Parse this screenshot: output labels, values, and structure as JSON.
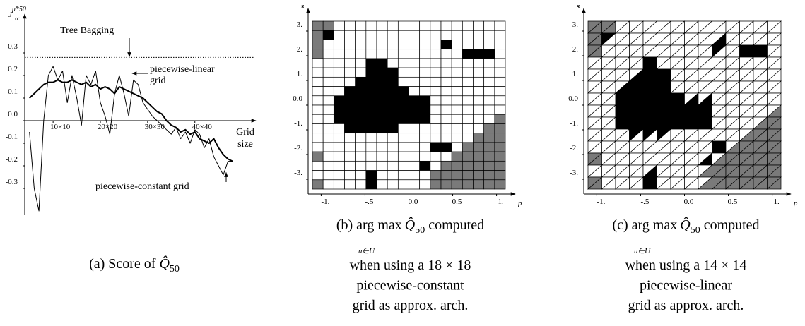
{
  "chart_data": [
    {
      "type": "line",
      "ylabel": {
        "base": "J",
        "sub": "∞",
        "sup": "μ̂*50"
      },
      "xlabel": [
        "Grid",
        "size"
      ],
      "x": [
        5,
        6,
        7,
        8,
        9,
        10,
        11,
        12,
        13,
        14,
        15,
        16,
        17,
        18,
        19,
        20,
        21,
        22,
        23,
        24,
        25,
        26,
        27,
        28,
        29,
        30,
        31,
        32,
        33,
        34,
        35,
        36,
        37,
        38,
        39,
        40,
        41,
        42,
        43,
        44,
        45,
        46,
        47,
        48
      ],
      "series": [
        {
          "name": "piecewise-linear grid",
          "color": "#000000",
          "width": 2,
          "values": [
            0.1,
            0.12,
            0.14,
            0.16,
            0.17,
            0.17,
            0.18,
            0.17,
            0.17,
            0.18,
            0.17,
            0.16,
            0.17,
            0.15,
            0.16,
            0.14,
            0.15,
            0.14,
            0.12,
            0.15,
            0.14,
            0.13,
            0.12,
            0.11,
            0.1,
            0.08,
            0.06,
            0.04,
            0.03,
            0.0,
            -0.02,
            -0.03,
            -0.05,
            -0.04,
            -0.06,
            -0.05,
            -0.08,
            -0.09,
            -0.1,
            -0.08,
            -0.12,
            -0.15,
            -0.17,
            -0.18
          ]
        },
        {
          "name": "piecewise-constant grid",
          "color": "#000000",
          "width": 1,
          "values": [
            -0.05,
            -0.3,
            -0.4,
            0.0,
            0.2,
            0.24,
            0.18,
            0.22,
            0.08,
            0.2,
            0.1,
            -0.02,
            0.2,
            0.16,
            0.22,
            0.08,
            0.02,
            -0.06,
            0.12,
            0.2,
            0.12,
            0.02,
            0.18,
            0.16,
            0.08,
            0.05,
            0.02,
            0.0,
            -0.02,
            -0.04,
            -0.06,
            -0.03,
            -0.08,
            -0.05,
            -0.1,
            -0.04,
            -0.06,
            -0.12,
            -0.08,
            -0.16,
            -0.2,
            -0.24,
            -0.18,
            -0.18
          ]
        }
      ],
      "annotations": {
        "tree_bagging": "Tree Bagging",
        "linear": [
          "piecewise-linear",
          "grid"
        ],
        "constant": "piecewise-constant grid"
      },
      "reference": 0.28,
      "xlim": [
        4,
        52
      ],
      "ylim": [
        -0.4,
        0.4
      ],
      "xticks": [
        {
          "value": 10,
          "label": "10×10"
        },
        {
          "value": 20,
          "label": "20×20"
        },
        {
          "value": 30,
          "label": "30×30"
        },
        {
          "value": 40,
          "label": "40×40"
        }
      ],
      "yticks": [
        0.3,
        0.2,
        0.1,
        {
          "value": 0,
          "label": "0.0"
        },
        -0.1,
        -0.2,
        -0.3
      ],
      "caption": {
        "lead": "(a) Score of ",
        "symbol": "Q̂",
        "sub": "50"
      }
    },
    {
      "type": "grid",
      "mesh": "square",
      "cells": 18,
      "xlabel": "p",
      "ylabel": "s",
      "xlim": [
        -1.1,
        1.1
      ],
      "ylim": [
        -3.4,
        3.4
      ],
      "xticks": [
        {
          "value": -1,
          "label": "-1."
        },
        {
          "value": -0.5,
          "label": "-.5"
        },
        {
          "value": 0,
          "label": "0.0"
        },
        0.5,
        {
          "value": 1,
          "label": "1."
        }
      ],
      "yticks": [
        {
          "value": 3,
          "label": "3."
        },
        {
          "value": 2,
          "label": "2."
        },
        {
          "value": 1,
          "label": "1."
        },
        {
          "value": 0,
          "label": "0.0"
        },
        {
          "value": -1,
          "label": "-1."
        },
        {
          "value": -2,
          "label": "-2."
        },
        {
          "value": -3,
          "label": "-3."
        }
      ],
      "caption": {
        "lead": "(b) arg max",
        "symbol": "Q̂",
        "sub": "50",
        "tail": " computed",
        "under": "u∈U",
        "lines": [
          "when using a 18 × 18",
          "piecewise-constant",
          "grid as approx. arch."
        ]
      }
    },
    {
      "type": "grid",
      "mesh": "triangular",
      "cells": 14,
      "xlabel": "p",
      "ylabel": "s",
      "xlim": [
        -1.1,
        1.1
      ],
      "ylim": [
        -3.4,
        3.4
      ],
      "xticks": [
        {
          "value": -1,
          "label": "-1."
        },
        {
          "value": -0.5,
          "label": "-.5"
        },
        {
          "value": 0,
          "label": "0.0"
        },
        0.5,
        {
          "value": 1,
          "label": "1."
        }
      ],
      "yticks": [
        {
          "value": 3,
          "label": "3."
        },
        {
          "value": 2,
          "label": "2."
        },
        {
          "value": 1,
          "label": "1."
        },
        {
          "value": 0,
          "label": "0.0"
        },
        {
          "value": -1,
          "label": "-1."
        },
        {
          "value": -2,
          "label": "-2."
        },
        {
          "value": -3,
          "label": "-3."
        }
      ],
      "caption": {
        "lead": "(c) arg max",
        "symbol": "Q̂",
        "sub": "50",
        "tail": " computed",
        "under": "u∈U",
        "lines": [
          "when using a 14 × 14",
          "piecewise-linear",
          "grid as approx. arch."
        ]
      }
    }
  ]
}
